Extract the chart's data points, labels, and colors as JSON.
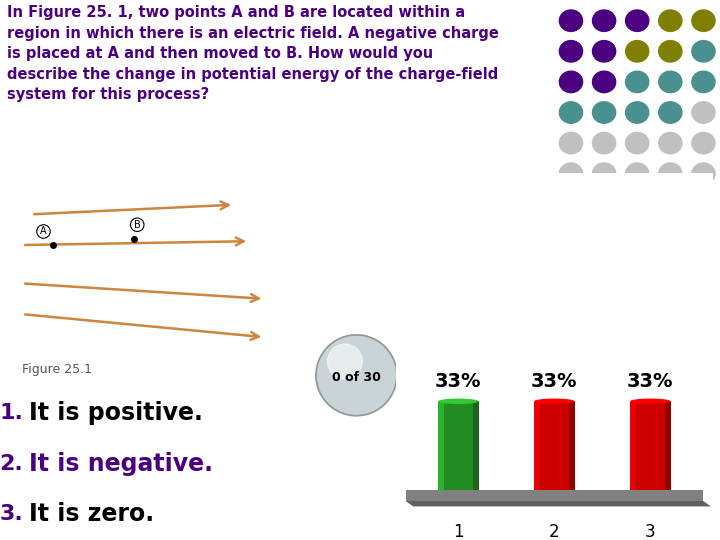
{
  "title_text": "In Figure 25. 1, two points A and B are located within a\nregion in which there is an electric field. A negative charge\nis placed at A and then moved to B. How would you\ndescribe the change in potential energy of the charge-field\nsystem for this process?",
  "title_color": "#4B0082",
  "figure_label": "Figure 25.1",
  "answer_labels": [
    "1.",
    "2.",
    "3."
  ],
  "answer_texts": [
    "It is positive.",
    "It is negative.",
    "It is zero."
  ],
  "answer_text_colors": [
    "#000000",
    "#4B0082",
    "#000000"
  ],
  "answer_label_colors": [
    "#4B0082",
    "#4B0082",
    "#4B0082"
  ],
  "bar_categories": [
    "1",
    "2",
    "3"
  ],
  "bar_values": [
    33,
    33,
    33
  ],
  "bar_colors": [
    "#228B22",
    "#CC0000",
    "#CC0000"
  ],
  "bar_base_color": "#808080",
  "background_color": "#FFFFFF",
  "counter_text": "0 of 30",
  "arrow_color": "#CD853F",
  "dot_colors_grid": [
    [
      "#4B0082",
      "#4B0082",
      "#4B0082",
      "#808000",
      "#808000"
    ],
    [
      "#4B0082",
      "#4B0082",
      "#808000",
      "#808000",
      "#4B9090"
    ],
    [
      "#4B0082",
      "#4B0082",
      "#4B9090",
      "#4B9090",
      "#4B9090"
    ],
    [
      "#4B9090",
      "#4B9090",
      "#4B9090",
      "#4B9090",
      "#C0C0C0"
    ],
    [
      "#C0C0C0",
      "#C0C0C0",
      "#C0C0C0",
      "#C0C0C0",
      "#C0C0C0"
    ],
    [
      "#C0C0C0",
      "#C0C0C0",
      "#C0C0C0",
      "#C0C0C0",
      "#C0C0C0"
    ]
  ],
  "field_lines": [
    [
      0.8,
      7.4,
      7.5,
      7.9
    ],
    [
      0.5,
      5.8,
      8.0,
      6.0
    ],
    [
      0.5,
      3.8,
      8.5,
      3.0
    ],
    [
      0.5,
      2.2,
      8.5,
      1.0
    ]
  ],
  "point_A": [
    1.5,
    5.8
  ],
  "point_B": [
    4.2,
    6.1
  ]
}
